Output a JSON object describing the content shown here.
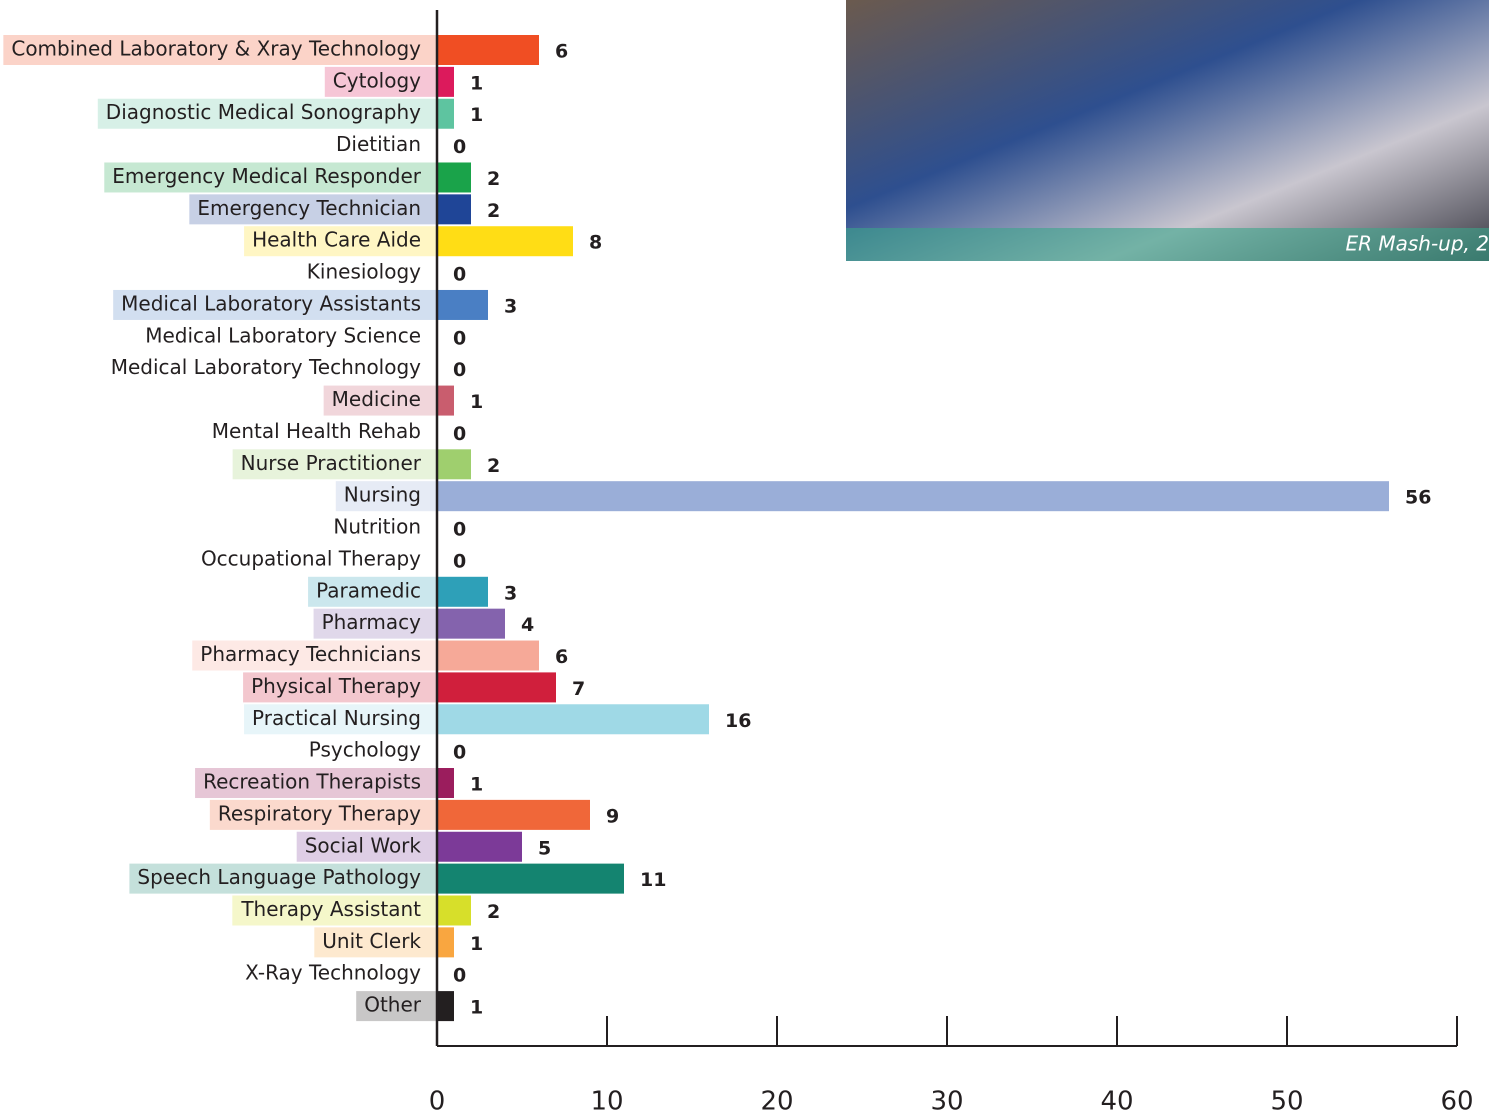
{
  "chart_data": {
    "type": "barh",
    "categories": [
      "Combined Laboratory & Xray Technology",
      "Cytology",
      "Diagnostic Medical Sonography",
      "Dietitian",
      "Emergency Medical Responder",
      "Emergency Technician",
      "Health Care Aide",
      "Kinesiology",
      "Medical Laboratory Assistants",
      "Medical Laboratory Science",
      "Medical Laboratory Technology",
      "Medicine",
      "Mental Health Rehab",
      "Nurse Practitioner",
      "Nursing",
      "Nutrition",
      "Occupational Therapy",
      "Paramedic",
      "Pharmacy",
      "Pharmacy Technicians",
      "Physical Therapy",
      "Practical Nursing",
      "Psychology",
      "Recreation Therapists",
      "Respiratory Therapy",
      "Social Work",
      "Speech Language Pathology",
      "Therapy Assistant",
      "Unit Clerk",
      "X-Ray Technology",
      "Other"
    ],
    "values": [
      6,
      1,
      1,
      0,
      2,
      2,
      8,
      0,
      3,
      0,
      0,
      1,
      0,
      2,
      56,
      0,
      0,
      3,
      4,
      6,
      7,
      16,
      0,
      1,
      9,
      5,
      11,
      2,
      1,
      0,
      1
    ],
    "colors": [
      "#f04e23",
      "#dc1a5c",
      "#5ec4a0",
      null,
      "#1aa34a",
      "#1f4597",
      "#ffdd15",
      null,
      "#4a7fc4",
      null,
      null,
      "#c95d6e",
      null,
      "#9fcf6e",
      "#9aaed8",
      null,
      null,
      "#2ea0b8",
      "#8463ad",
      "#f6a998",
      "#d01f3c",
      "#9fd9e6",
      null,
      "#9b1d5d",
      "#f06739",
      "#7c3a98",
      "#148470",
      "#d7df2a",
      "#f9a640",
      null,
      "#231f20"
    ],
    "xlim": [
      0,
      60
    ],
    "xticks": [
      0,
      10,
      20,
      30,
      40,
      50,
      60
    ],
    "image_caption": "ER Mash-up, 2"
  }
}
